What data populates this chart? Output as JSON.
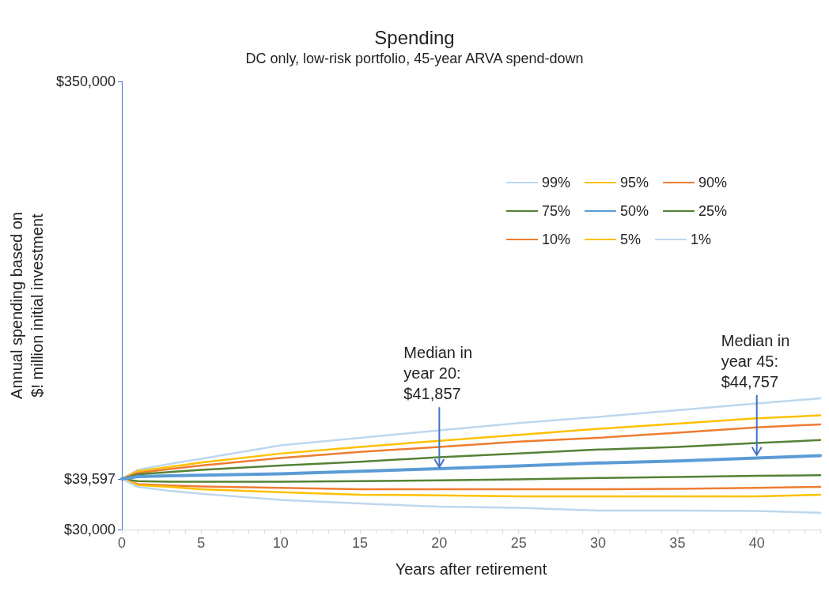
{
  "chart_data": {
    "type": "line",
    "title": "Spending",
    "subtitle": "DC only, low-risk portfolio, 45-year ARVA spend-down",
    "xlabel": "Years after retirement",
    "ylabel": "Annual spending based on\n$! million initial investment",
    "x": [
      0,
      1,
      3,
      5,
      10,
      15,
      20,
      25,
      30,
      35,
      40,
      44
    ],
    "xlim": [
      0,
      44
    ],
    "xticks": [
      0,
      5,
      10,
      15,
      20,
      25,
      30,
      35,
      40
    ],
    "log": "y",
    "ylim": [
      30000,
      350000
    ],
    "yticks": [
      {
        "value": 30000,
        "label": "$30,000"
      },
      {
        "value": 39597,
        "label": "$39,597"
      },
      {
        "value": 350000,
        "label": "$350,000"
      }
    ],
    "grid": false,
    "legend": "top right",
    "marker": "none",
    "line_style": "solid",
    "series": [
      {
        "name": "99%",
        "color": "#bdd7ee",
        "values": [
          39597,
          41600,
          43000,
          44200,
          47600,
          49600,
          51700,
          53800,
          55600,
          57700,
          59900,
          61600
        ]
      },
      {
        "name": "95%",
        "color": "#ffc000",
        "values": [
          39597,
          41300,
          42300,
          43300,
          45500,
          47200,
          48800,
          50400,
          52100,
          53600,
          55200,
          56100
        ]
      },
      {
        "name": "90%",
        "color": "#ed7d31",
        "values": [
          39597,
          40900,
          41800,
          42600,
          44400,
          45900,
          47200,
          48600,
          49600,
          51000,
          52500,
          53400
        ]
      },
      {
        "name": "75%",
        "color": "#548235",
        "values": [
          39597,
          40600,
          41100,
          41600,
          42600,
          43500,
          44600,
          45500,
          46500,
          47200,
          48200,
          49000
        ]
      },
      {
        "name": "50%",
        "color": "#5b9bd5",
        "values": [
          39597,
          40100,
          40300,
          40400,
          40700,
          41300,
          41900,
          42500,
          43200,
          43700,
          44400,
          45000
        ]
      },
      {
        "name": "25%",
        "color": "#548235",
        "values": [
          39597,
          39100,
          39000,
          39000,
          39000,
          39100,
          39300,
          39500,
          39800,
          40000,
          40300,
          40400
        ]
      },
      {
        "name": "10%",
        "color": "#ed7d31",
        "values": [
          39597,
          38500,
          38200,
          38000,
          37700,
          37400,
          37400,
          37400,
          37400,
          37500,
          37700,
          37900
        ]
      },
      {
        "name": "5%",
        "color": "#ffc000",
        "values": [
          39597,
          38300,
          37900,
          37400,
          36800,
          36300,
          36200,
          36000,
          36000,
          36000,
          36000,
          36300
        ]
      },
      {
        "name": "1%",
        "color": "#bdd7ee",
        "values": [
          39597,
          37900,
          37100,
          36500,
          35300,
          34600,
          34000,
          33800,
          33300,
          33300,
          33200,
          32900
        ]
      }
    ],
    "annotations": [
      {
        "text": "Median in\nyear 20:\n$41,857",
        "x": 20,
        "y": 41857
      },
      {
        "text": "Median in\nyear 45:\n$44,757",
        "x": 40,
        "y": 44757
      }
    ]
  }
}
